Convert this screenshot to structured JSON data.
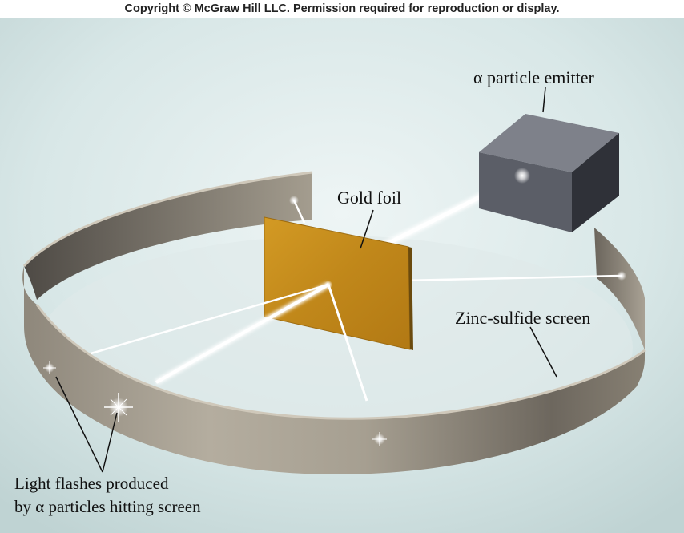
{
  "copyright": "Copyright © McGraw Hill LLC. Permission required for reproduction or display.",
  "labels": {
    "emitter": "α particle emitter",
    "gold_foil": "Gold foil",
    "screen": "Zinc-sulfide screen",
    "flashes_line1": "Light flashes produced",
    "flashes_line2": "by α particles hitting screen"
  },
  "colors": {
    "background": "#d6e6e6",
    "screen": "#9c9588",
    "foil": "#c8911f",
    "emitter": "#5a5d66",
    "beam": "#ffffff"
  }
}
